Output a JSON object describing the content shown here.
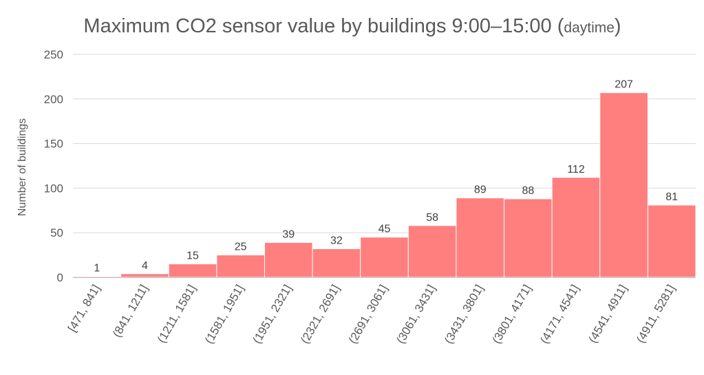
{
  "chart_data": {
    "type": "bar",
    "title_main": "Maximum CO2 sensor value by buildings 9:00–15:00 (",
    "title_small": "daytime",
    "title_close": ")",
    "xlabel": "",
    "ylabel": "Number of buildings",
    "ylim": [
      0,
      250
    ],
    "yticks": [
      0,
      50,
      100,
      150,
      200,
      250
    ],
    "grid": true,
    "bar_color": "#ff7f7f",
    "categories": [
      "[471, 841]",
      "(841, 1211]",
      "(1211, 1581]",
      "(1581, 1951]",
      "(1951, 2321]",
      "(2321, 2691]",
      "(2691, 3061]",
      "(3061, 3431]",
      "(3431, 3801]",
      "(3801, 4171]",
      "(4171, 4541]",
      "(4541, 4911]",
      "(4911, 5281]"
    ],
    "values": [
      1,
      4,
      15,
      25,
      39,
      32,
      45,
      58,
      89,
      88,
      112,
      207,
      81
    ]
  }
}
